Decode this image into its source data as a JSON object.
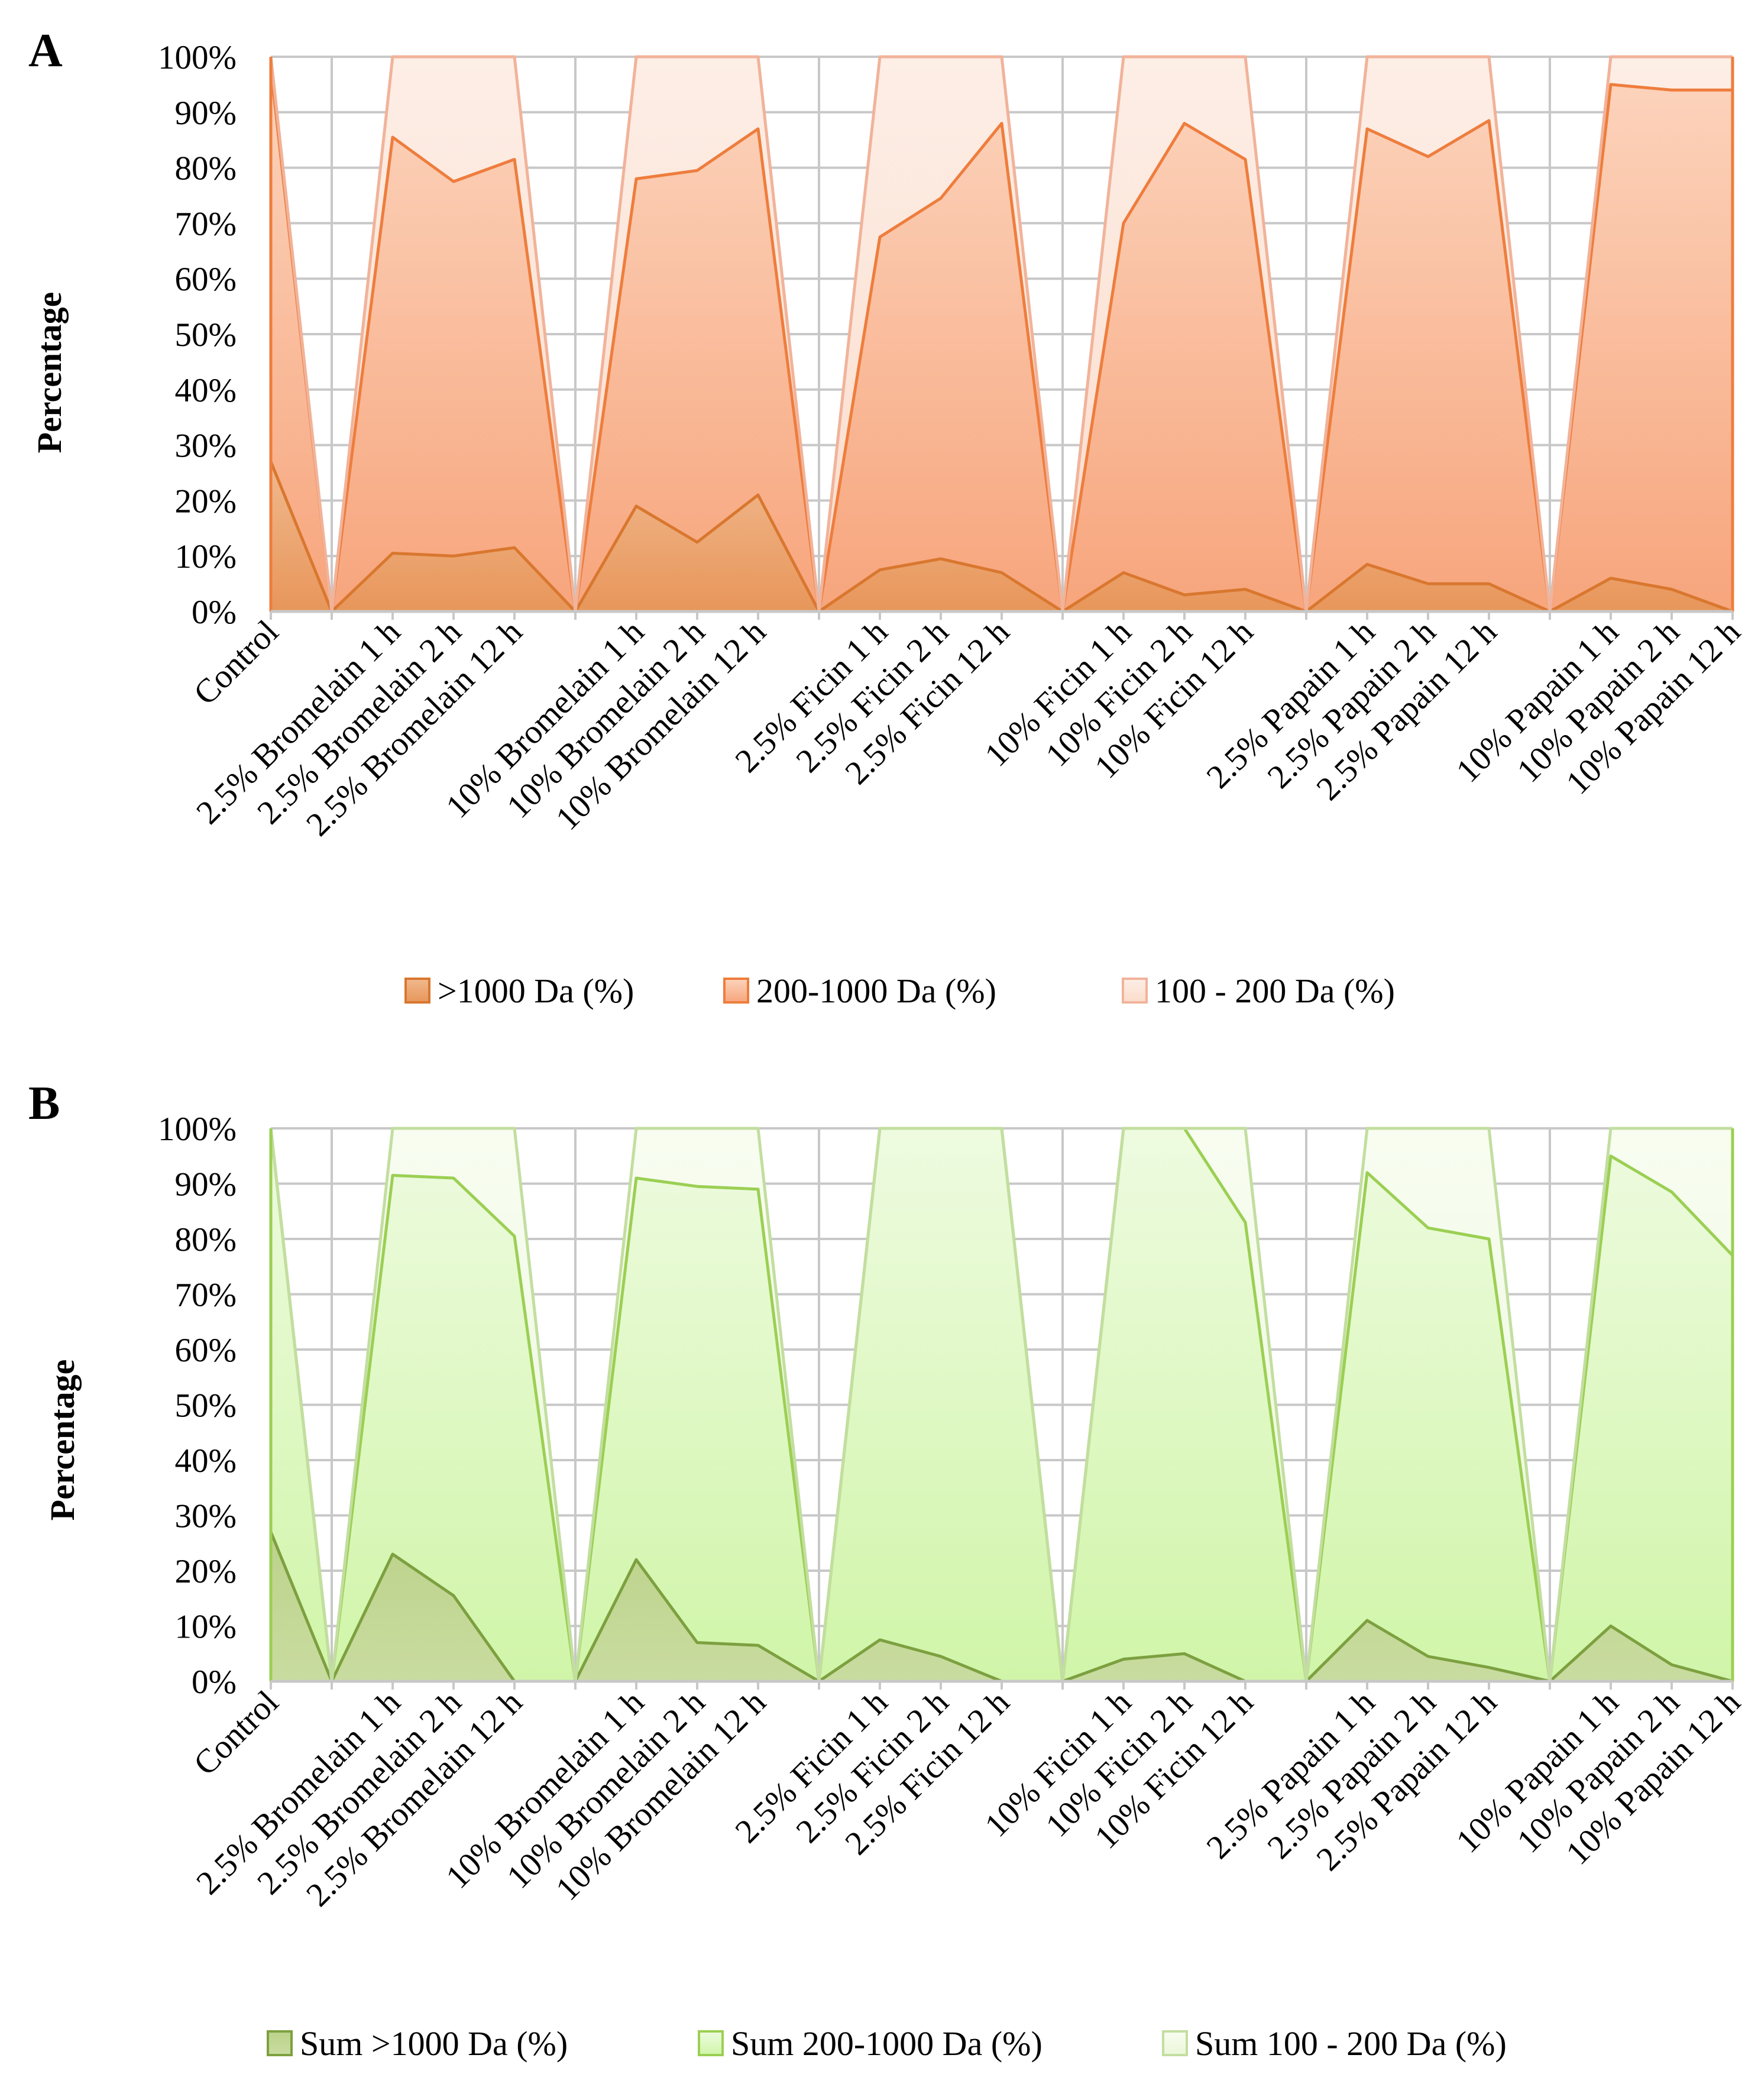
{
  "chart_data": [
    {
      "type": "area",
      "stacked": true,
      "panel": "A",
      "ylabel": "Percentage",
      "ylim": [
        0,
        100
      ],
      "y_ticks": [
        "0%",
        "10%",
        "20%",
        "30%",
        "40%",
        "50%",
        "60%",
        "70%",
        "80%",
        "90%",
        "100%"
      ],
      "categories": [
        "Control",
        "",
        "2.5% Bromelain 1 h",
        "2.5% Bromelain 2 h",
        "2.5% Bromelain 12 h",
        "",
        "10% Bromelain 1 h",
        "10% Bromelain 2 h",
        "10% Bromelain 12 h",
        "",
        "2.5% Ficin 1 h",
        "2.5% Ficin 2 h",
        "2.5% Ficin 12 h",
        "",
        "10% Ficin 1 h",
        "10% Ficin 2 h",
        "10% Ficin 12 h",
        "",
        "2.5% Papain 1 h",
        "2.5% Papain 2 h",
        "2.5% Papain 12 h",
        "",
        "10% Papain 1 h",
        "10% Papain 2 h",
        "10% Papain 12 h"
      ],
      "series": [
        {
          "name": ">1000 Da (%)",
          "color": "#d9772f",
          "fill_top": "#f0b98e",
          "fill_bottom": "#e8965a",
          "values": [
            27,
            0,
            10.5,
            10,
            11.5,
            0,
            19,
            12.5,
            21,
            0,
            7.5,
            9.5,
            7,
            0,
            7,
            3,
            4,
            0,
            8.5,
            5,
            5,
            0,
            6,
            4,
            0
          ]
        },
        {
          "name": "200-1000 Da (%)",
          "color": "#ee7d3d",
          "fill_top": "#fcd4bd",
          "fill_bottom": "#f7a57c",
          "values": [
            71,
            0,
            75,
            67.5,
            70,
            0,
            59,
            67,
            66,
            0,
            60,
            65,
            81,
            0,
            63,
            85,
            77.5,
            0,
            78.5,
            77,
            83.5,
            0,
            89,
            90,
            94
          ]
        },
        {
          "name": "100 - 200 Da (%)",
          "color": "#f1b39a",
          "fill_top": "#fdeee6",
          "fill_bottom": "#fbdccb",
          "values": [
            2,
            0,
            14.5,
            22.5,
            18.5,
            0,
            22,
            20.5,
            13,
            0,
            32.5,
            25.5,
            12,
            0,
            30,
            12,
            18.5,
            0,
            13,
            18,
            11.5,
            0,
            5,
            6,
            6
          ]
        }
      ]
    },
    {
      "type": "area",
      "stacked": true,
      "panel": "B",
      "ylabel": "Percentage",
      "ylim": [
        0,
        100
      ],
      "y_ticks": [
        "0%",
        "10%",
        "20%",
        "30%",
        "40%",
        "50%",
        "60%",
        "70%",
        "80%",
        "90%",
        "100%"
      ],
      "categories": [
        "Control",
        "",
        "2.5% Bromelain 1 h",
        "2.5% Bromelain 2 h",
        "2.5% Bromelain 12 h",
        "",
        "10% Bromelain 1 h",
        "10% Bromelain 2 h",
        "10% Bromelain 12 h",
        "",
        "2.5% Ficin 1 h",
        "2.5% Ficin 2 h",
        "2.5% Ficin 12 h",
        "",
        "10% Ficin 1 h",
        "10% Ficin 2 h",
        "10% Ficin 12 h",
        "",
        "2.5% Papain 1 h",
        "2.5% Papain 2 h",
        "2.5% Papain 12 h",
        "",
        "10% Papain 1 h",
        "10% Papain 2 h",
        "10% Papain 12 h"
      ],
      "series": [
        {
          "name": "Sum >1000 Da (%)",
          "color": "#7da040",
          "fill_top": "#bcd28a",
          "fill_bottom": "#c9dca0",
          "values": [
            27,
            0,
            23,
            15.5,
            0,
            0,
            22,
            7,
            6.5,
            0,
            7.5,
            4.5,
            0,
            0,
            4,
            5,
            0,
            0,
            11,
            4.5,
            2.5,
            0,
            10,
            3,
            0
          ]
        },
        {
          "name": "Sum 200-1000 Da (%)",
          "color": "#9bcf53",
          "fill_top": "#eefbe0",
          "fill_bottom": "#d0f5a8",
          "values": [
            73,
            0,
            68.5,
            75.5,
            80.5,
            0,
            69,
            82.5,
            82.5,
            0,
            92.5,
            95.5,
            100,
            0,
            96,
            95,
            83,
            0,
            81,
            77.5,
            77.5,
            0,
            85,
            85.5,
            77
          ]
        },
        {
          "name": "Sum 100 - 200 Da (%)",
          "color": "#c3dea0",
          "fill_top": "#f8fdf1",
          "fill_bottom": "#eaf7d9",
          "values": [
            0,
            0,
            8.5,
            9,
            19.5,
            0,
            9,
            10.5,
            11,
            0,
            0,
            0,
            0,
            0,
            0,
            0,
            17,
            0,
            8,
            18,
            20,
            0,
            5,
            11.5,
            23
          ]
        }
      ]
    }
  ]
}
